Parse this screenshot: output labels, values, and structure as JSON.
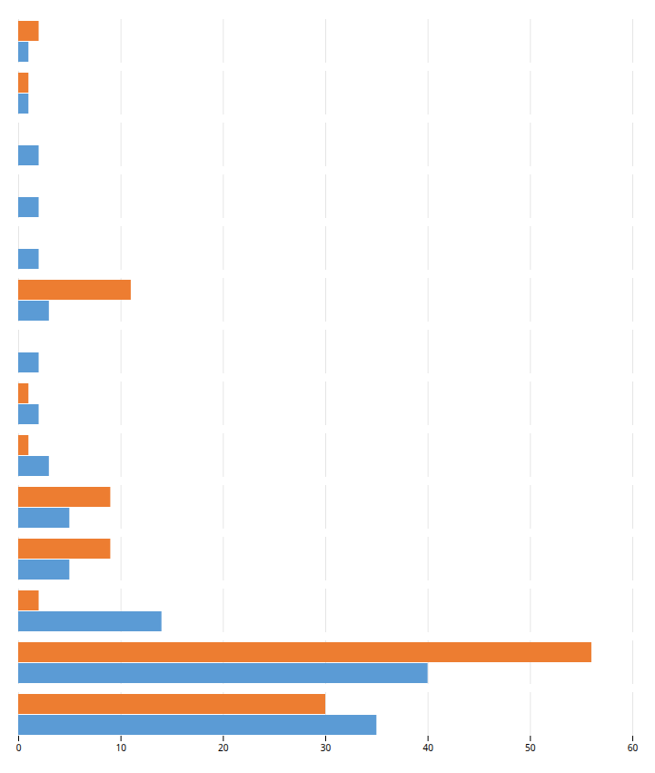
{
  "chart_data": {
    "type": "bar",
    "orientation": "horizontal",
    "categories": [
      null,
      null,
      null,
      null,
      null,
      null,
      null,
      null,
      null,
      null,
      null,
      null,
      null,
      null
    ],
    "series": [
      {
        "color": "#ed7d31",
        "values": [
          2,
          1,
          0,
          0,
          0,
          11,
          0,
          1,
          1,
          9,
          9,
          2,
          56,
          30
        ]
      },
      {
        "color": "#5b9bd5",
        "values": [
          1,
          1,
          2,
          2,
          2,
          3,
          2,
          2,
          3,
          5,
          5,
          14,
          40,
          35
        ]
      }
    ],
    "xlim": [
      0,
      60
    ],
    "xticks": [
      0,
      10,
      20,
      30,
      40,
      50,
      60
    ],
    "grid": true,
    "tick_labels": "x"
  }
}
